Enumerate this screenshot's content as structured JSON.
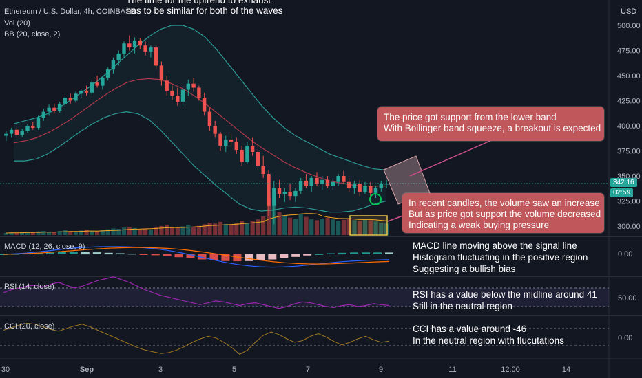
{
  "header": {
    "symbol_line": "Ethereum / U.S. Dollar, 4h, COINBASE",
    "vol_label": "Vol (20)",
    "bb_label": "BB (20, close, 2)",
    "currency": "USD"
  },
  "top_note": {
    "line1": "The time for the uptrend to exhaust",
    "line2": "has to be similar for both of the waves"
  },
  "annotations": {
    "support_1": "The price got support from the lower band",
    "support_2": "With Bollinger band squeeze, a breakout is expected",
    "volume_1": "In recent candles, the volume saw an increase",
    "volume_2": "But as price got support the volume decreased",
    "volume_3": "Indicating a weak buying pressure",
    "macd_1": "MACD line moving above the signal line",
    "macd_2": "Histogram fluctuating in the positive region",
    "macd_3": "Suggesting a bullish bias",
    "rsi_1": "RSI has a value below the midline around 41",
    "rsi_2": "Still in the neutral region",
    "cci_1": "CCI has a value around -46",
    "cci_2": "In the neutral region with flucutations"
  },
  "panes": {
    "macd_label": "MACD (12, 26, close, 9)",
    "rsi_label": "RSI (14, close)",
    "cci_label": "CCI (20, close)"
  },
  "price_axis": {
    "ticks": [
      "500.00",
      "475.00",
      "450.00",
      "425.00",
      "400.00",
      "375.00",
      "350.00",
      "325.00",
      "300.00"
    ],
    "tick_values": [
      500,
      475,
      450,
      425,
      400,
      375,
      350,
      325,
      300
    ],
    "last_price": "342.16",
    "countdown": "02:59",
    "macd_tick": "0.00",
    "rsi_tick": "50.00",
    "cci_tick": "0.00"
  },
  "time_axis": [
    "30",
    "Sep",
    "3",
    "5",
    "7",
    "9",
    "11",
    "12:00",
    "14"
  ],
  "colors": {
    "background": "#131722",
    "bull": "#26a69a",
    "bear": "#ef5350",
    "bb_band": "#2c9b94",
    "bb_basis": "#b2384a",
    "annotation_box": "#c0575a",
    "macd_line": "#2962ff",
    "signal_line": "#ff6d00",
    "rsi_line": "#9c27b0",
    "cci_line": "#a07820"
  },
  "chart_data": {
    "type": "candlestick",
    "symbol": "Ethereum / U.S. Dollar",
    "interval": "4h",
    "exchange": "COINBASE",
    "x_labels": [
      "30",
      "Sep",
      "3",
      "5",
      "7",
      "9",
      "11",
      "12:00",
      "14"
    ],
    "price_range": [
      290,
      512
    ],
    "candles": [
      [
        390,
        395,
        385,
        392
      ],
      [
        392,
        398,
        388,
        396
      ],
      [
        396,
        399,
        390,
        391
      ],
      [
        391,
        397,
        389,
        395
      ],
      [
        395,
        402,
        393,
        400
      ],
      [
        400,
        404,
        396,
        398
      ],
      [
        398,
        410,
        396,
        408
      ],
      [
        408,
        417,
        405,
        414
      ],
      [
        414,
        421,
        410,
        418
      ],
      [
        418,
        422,
        412,
        415
      ],
      [
        415,
        424,
        413,
        422
      ],
      [
        422,
        430,
        419,
        428
      ],
      [
        428,
        432,
        422,
        425
      ],
      [
        425,
        434,
        423,
        432
      ],
      [
        432,
        437,
        428,
        435
      ],
      [
        435,
        440,
        430,
        433
      ],
      [
        433,
        445,
        431,
        443
      ],
      [
        443,
        450,
        438,
        440
      ],
      [
        440,
        450,
        436,
        448
      ],
      [
        448,
        458,
        445,
        456
      ],
      [
        456,
        468,
        452,
        465
      ],
      [
        465,
        475,
        460,
        472
      ],
      [
        472,
        484,
        468,
        482
      ],
      [
        482,
        490,
        475,
        478
      ],
      [
        478,
        488,
        472,
        485
      ],
      [
        485,
        487,
        476,
        480
      ],
      [
        480,
        484,
        470,
        474
      ],
      [
        474,
        480,
        468,
        478
      ],
      [
        478,
        480,
        456,
        460
      ],
      [
        460,
        464,
        440,
        445
      ],
      [
        445,
        450,
        430,
        435
      ],
      [
        435,
        440,
        426,
        430
      ],
      [
        430,
        438,
        420,
        424
      ],
      [
        424,
        440,
        420,
        436
      ],
      [
        436,
        446,
        430,
        442
      ],
      [
        442,
        448,
        434,
        438
      ],
      [
        438,
        440,
        425,
        428
      ],
      [
        428,
        433,
        410,
        414
      ],
      [
        414,
        418,
        395,
        400
      ],
      [
        400,
        405,
        388,
        392
      ],
      [
        392,
        394,
        375,
        380
      ],
      [
        380,
        390,
        374,
        386
      ],
      [
        386,
        392,
        380,
        384
      ],
      [
        384,
        388,
        372,
        376
      ],
      [
        376,
        380,
        360,
        364
      ],
      [
        364,
        384,
        362,
        380
      ],
      [
        380,
        388,
        370,
        374
      ],
      [
        374,
        380,
        356,
        360
      ],
      [
        360,
        370,
        348,
        352
      ],
      [
        352,
        356,
        310,
        320
      ],
      [
        320,
        345,
        302,
        338
      ],
      [
        338,
        346,
        328,
        332
      ],
      [
        332,
        338,
        324,
        334
      ],
      [
        334,
        342,
        326,
        330
      ],
      [
        330,
        338,
        324,
        335
      ],
      [
        335,
        348,
        332,
        345
      ],
      [
        345,
        352,
        338,
        340
      ],
      [
        340,
        350,
        334,
        348
      ],
      [
        348,
        354,
        340,
        342
      ],
      [
        342,
        350,
        336,
        346
      ],
      [
        346,
        350,
        338,
        340
      ],
      [
        340,
        348,
        336,
        344
      ],
      [
        344,
        352,
        340,
        350
      ],
      [
        350,
        355,
        342,
        344
      ],
      [
        344,
        348,
        334,
        338
      ],
      [
        338,
        345,
        332,
        342
      ],
      [
        342,
        346,
        330,
        334
      ],
      [
        334,
        344,
        332,
        340
      ],
      [
        340,
        344,
        330,
        333
      ],
      [
        333,
        340,
        328,
        338
      ],
      [
        338,
        345,
        334,
        342
      ],
      [
        342,
        346,
        338,
        342.16
      ]
    ],
    "bollinger": {
      "upper": [
        402,
        405,
        408,
        412,
        418,
        425,
        433,
        441,
        450,
        460,
        470,
        480,
        489,
        496,
        500,
        500,
        496,
        488,
        476,
        462,
        448,
        434,
        420,
        408,
        398,
        390,
        384,
        378,
        372,
        368,
        364,
        360,
        357,
        356
      ],
      "basis": [
        383,
        385,
        388,
        393,
        399,
        406,
        414,
        422,
        430,
        437,
        443,
        446,
        447,
        446,
        442,
        437,
        430,
        422,
        413,
        404,
        395,
        386,
        378,
        371,
        364,
        358,
        353,
        349,
        345,
        343,
        341,
        340,
        340,
        340
      ],
      "lower": [
        365,
        365,
        367,
        372,
        379,
        387,
        395,
        402,
        408,
        412,
        414,
        412,
        406,
        396,
        384,
        372,
        360,
        350,
        340,
        331,
        322,
        317,
        315,
        316,
        318,
        319,
        318,
        316,
        314,
        314,
        315,
        318,
        322,
        325
      ]
    },
    "volume_relative": [
      0.05,
      0.06,
      0.05,
      0.07,
      0.08,
      0.06,
      0.09,
      0.1,
      0.08,
      0.07,
      0.1,
      0.12,
      0.09,
      0.08,
      0.11,
      0.13,
      0.1,
      0.09,
      0.12,
      0.14,
      0.16,
      0.15,
      0.18,
      0.2,
      0.17,
      0.14,
      0.15,
      0.13,
      0.18,
      0.22,
      0.25,
      0.2,
      0.18,
      0.21,
      0.24,
      0.2,
      0.22,
      0.26,
      0.3,
      0.28,
      0.32,
      0.27,
      0.25,
      0.3,
      0.35,
      0.3,
      0.34,
      0.38,
      0.45,
      0.9,
      0.7,
      0.55,
      0.48,
      0.42,
      0.4,
      0.5,
      0.44,
      0.38,
      0.36,
      0.4,
      0.42,
      0.38,
      0.35,
      0.37,
      0.4,
      0.36,
      0.34,
      0.38,
      0.36,
      0.33,
      0.3,
      0.28
    ],
    "macd": {
      "zero_label": "0.00",
      "macd_line": [
        0,
        0.5,
        1.2,
        2.2,
        3.4,
        4.6,
        5.6,
        6.3,
        6.8,
        7,
        6.9,
        6.6,
        6,
        5,
        3.6,
        1.8,
        -0.4,
        -2.8,
        -5.2,
        -7.4,
        -9.2,
        -10.5,
        -11.3,
        -11.6,
        -11.4,
        -10.8,
        -9.8,
        -8.7,
        -7.6,
        -6.7,
        -6,
        -5.5,
        -5.1,
        -4.8
      ],
      "signal_line": [
        0,
        0.2,
        0.6,
        1.1,
        1.8,
        2.6,
        3.4,
        4.2,
        4.9,
        5.5,
        5.9,
        6.1,
        6.1,
        5.9,
        5.4,
        4.6,
        3.5,
        2.2,
        0.7,
        -0.9,
        -2.5,
        -4,
        -5.4,
        -6.6,
        -7.6,
        -8.3,
        -8.7,
        -8.8,
        -8.6,
        -8.2,
        -7.8,
        -7.3,
        -6.9,
        -6.5
      ],
      "histogram": [
        0,
        0.3,
        0.6,
        1.1,
        1.6,
        2,
        2.2,
        2.1,
        1.9,
        1.5,
        1,
        0.5,
        -0.1,
        -0.9,
        -1.8,
        -2.8,
        -3.9,
        -5,
        -5.9,
        -6.5,
        -6.7,
        -6.5,
        -5.9,
        -5,
        -3.8,
        -2.5,
        -1.1,
        0.1,
        1,
        1.5,
        1.8,
        1.8,
        1.8,
        1.7
      ]
    },
    "rsi": {
      "ref_label": "50.00",
      "values": [
        55,
        58,
        60,
        62,
        63,
        61,
        64,
        66,
        63,
        60,
        62,
        65,
        68,
        70,
        72,
        69,
        66,
        62,
        58,
        55,
        52,
        50,
        48,
        46,
        44,
        42,
        44,
        46,
        45,
        43,
        41,
        43,
        44,
        42,
        40,
        38,
        40,
        43,
        45,
        44,
        42,
        40,
        39,
        41,
        42,
        40,
        41,
        43,
        42,
        41
      ]
    },
    "cci": {
      "ref_label": "0.00",
      "values": [
        80,
        110,
        140,
        160,
        150,
        120,
        90,
        70,
        100,
        130,
        150,
        120,
        80,
        40,
        0,
        -40,
        -80,
        -120,
        -150,
        -170,
        -190,
        -180,
        -150,
        -110,
        -60,
        -20,
        10,
        -10,
        -60,
        -120,
        -200,
        -150,
        -60,
        20,
        60,
        30,
        -20,
        -60,
        -40,
        10,
        40,
        0,
        -50,
        -90,
        -60,
        -20,
        10,
        -30,
        -60,
        -46
      ]
    }
  }
}
